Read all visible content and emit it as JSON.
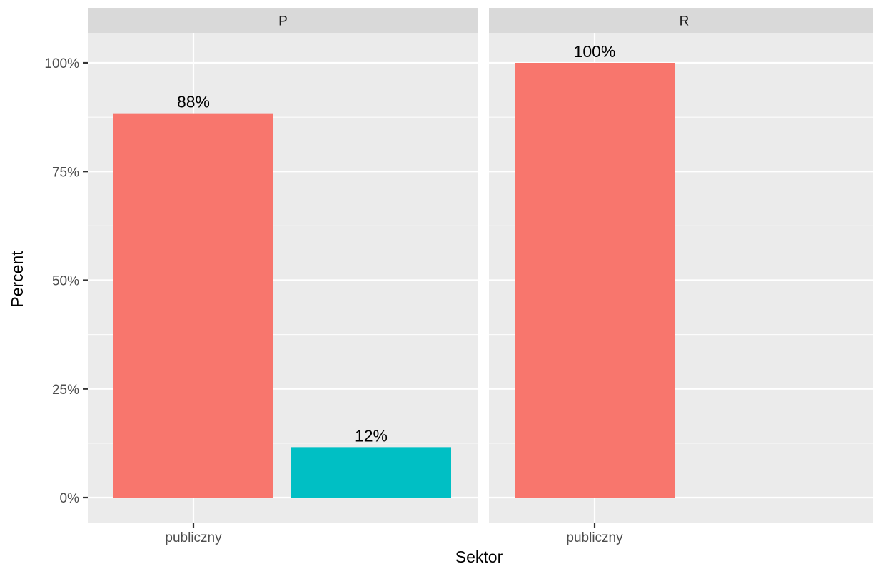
{
  "chart_data": {
    "type": "bar",
    "xlabel": "Sektor",
    "ylabel": "Percent",
    "ylim": [
      0,
      1.05
    ],
    "y_ticks": [
      0,
      0.25,
      0.5,
      0.75,
      1.0
    ],
    "y_tick_labels": [
      "0%",
      "25%",
      "50%",
      "75%",
      "100%"
    ],
    "categories": [
      "publiczny"
    ],
    "grid": true,
    "legend": "none",
    "colors": {
      "series_1": "#F8766D",
      "series_2": "#00BFC4",
      "panel_background": "#EBEBEB",
      "strip_background": "#D9D9D9",
      "gridline": "#FFFFFF"
    },
    "facets": [
      {
        "label": "P",
        "bars": [
          {
            "category": "publiczny",
            "group": 1,
            "value": 0.884,
            "label": "88%",
            "color": "#F8766D"
          },
          {
            "category": "publiczny",
            "group": 2,
            "value": 0.116,
            "label": "12%",
            "color": "#00BFC4"
          }
        ]
      },
      {
        "label": "R",
        "bars": [
          {
            "category": "publiczny",
            "group": 1,
            "value": 1.0,
            "label": "100%",
            "color": "#F8766D"
          }
        ]
      }
    ]
  }
}
